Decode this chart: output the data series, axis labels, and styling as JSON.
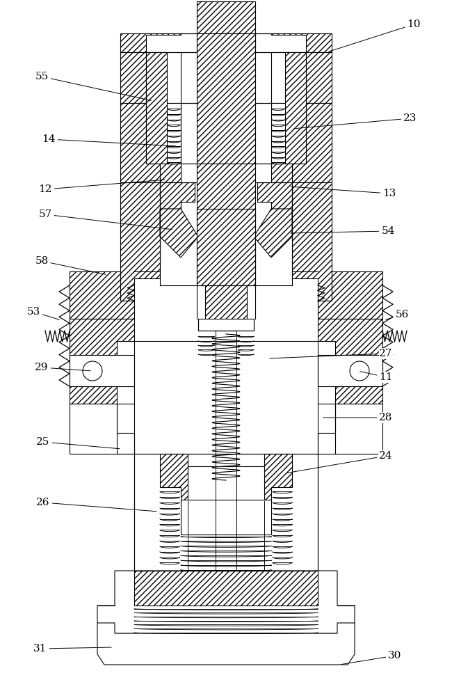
{
  "bg_color": "#ffffff",
  "line_color": "#000000",
  "figsize": [
    6.5,
    10.0
  ],
  "dpi": 100,
  "labels": [
    [
      "10",
      595,
      35,
      470,
      75
    ],
    [
      "55",
      60,
      110,
      220,
      145
    ],
    [
      "23",
      590,
      170,
      420,
      185
    ],
    [
      "14",
      70,
      200,
      255,
      210
    ],
    [
      "12",
      65,
      272,
      240,
      258
    ],
    [
      "13",
      560,
      278,
      415,
      268
    ],
    [
      "57",
      65,
      308,
      250,
      330
    ],
    [
      "54",
      558,
      332,
      415,
      335
    ],
    [
      "58",
      60,
      375,
      155,
      395
    ],
    [
      "53",
      48,
      448,
      88,
      460
    ],
    [
      "56",
      578,
      452,
      552,
      460
    ],
    [
      "27",
      555,
      508,
      385,
      515
    ],
    [
      "29",
      60,
      528,
      133,
      533
    ],
    [
      "11",
      555,
      542,
      515,
      533
    ],
    [
      "28",
      555,
      600,
      462,
      600
    ],
    [
      "25",
      62,
      635,
      175,
      645
    ],
    [
      "24",
      555,
      655,
      410,
      680
    ],
    [
      "26",
      62,
      722,
      228,
      735
    ],
    [
      "31",
      58,
      932,
      163,
      930
    ],
    [
      "30",
      568,
      942,
      488,
      955
    ]
  ]
}
